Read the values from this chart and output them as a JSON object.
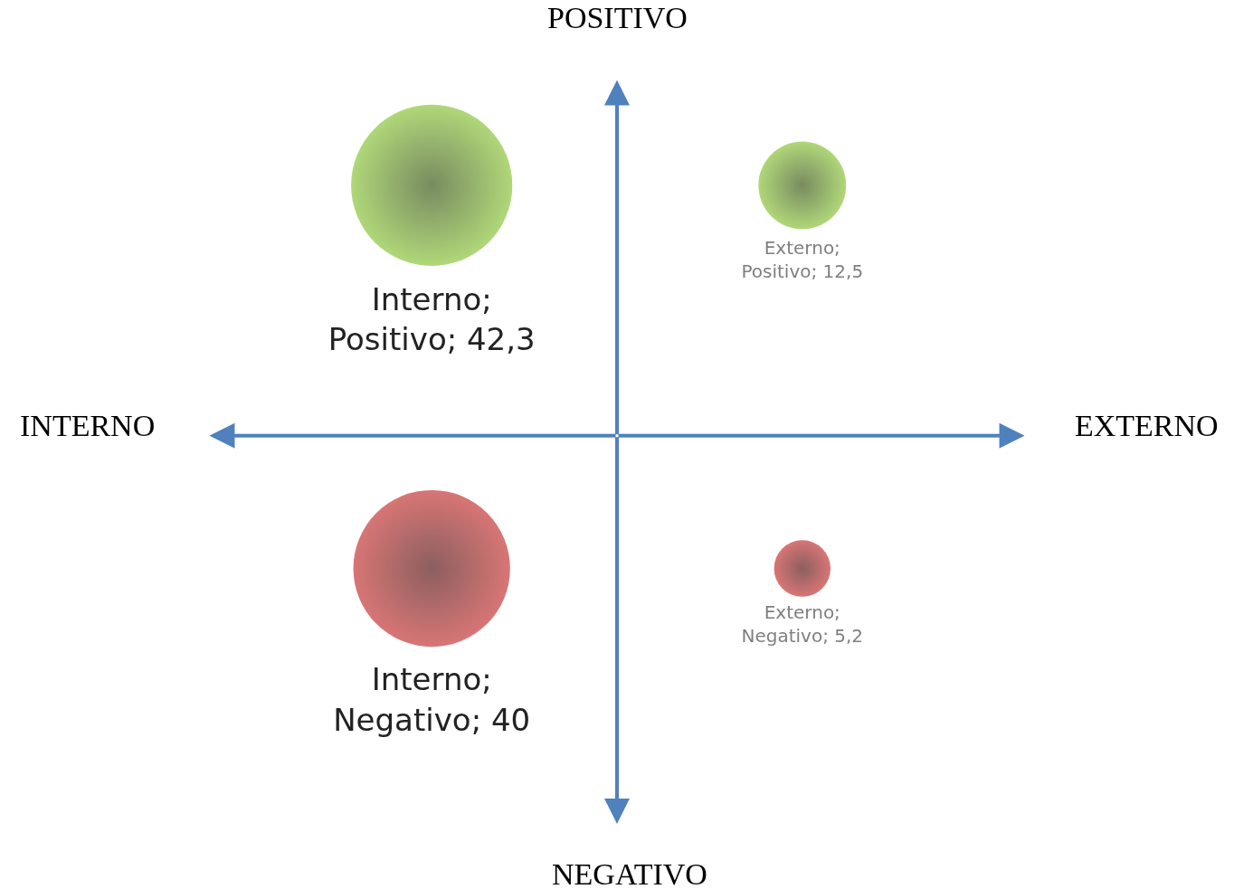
{
  "chart_data": {
    "type": "other",
    "values": [
      42.3,
      12.5,
      40,
      5.2
    ],
    "colors": [
      "#8dc63f",
      "#8dc63f",
      "#c73a3a",
      "#c73a3a"
    ],
    "value_labels": [
      "Interno; Positivo; 42,3",
      "Externo; Positivo; 12,5",
      "Interno; Negativo; 40",
      "Externo; Negativo; 5,2"
    ],
    "annotations": [
      "POSITIVO",
      "INTERNO",
      "EXTERNO",
      "NEGATIVO"
    ]
  }
}
